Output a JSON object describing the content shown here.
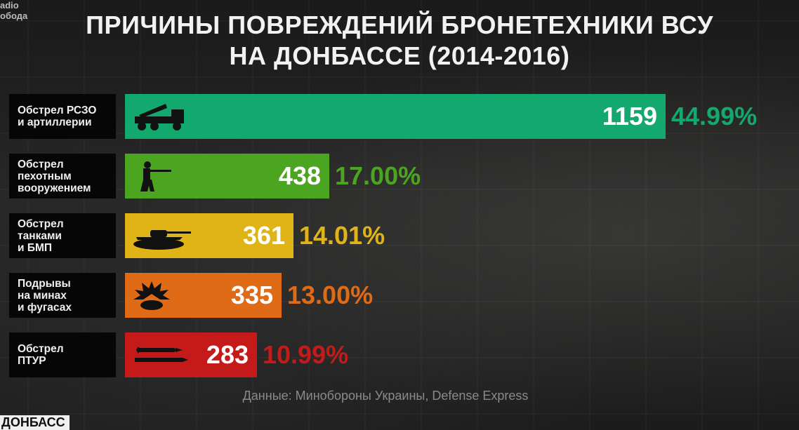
{
  "header": {
    "logo_line1": "adio",
    "logo_line2": "обода",
    "title_line1": "ПРИЧИНЫ ПОВРЕЖДЕНИЙ БРОНЕТЕХНИКИ ВСУ",
    "title_line2": "НА ДОНБАССЕ (2014-2016)"
  },
  "chart_data": {
    "type": "bar",
    "orientation": "horizontal",
    "title": "ПРИЧИНЫ ПОВРЕЖДЕНИЙ БРОНЕТЕХНИКИ ВСУ НА ДОНБАССЕ (2014-2016)",
    "categories": [
      "Обстрел РСЗО\nи артиллерии",
      "Обстрел\nпехотным\nвооружением",
      "Обстрел\nтанками\nи БМП",
      "Подрывы\nна минах\nи фугасах",
      "Обстрел\nПТУР"
    ],
    "values": [
      1159,
      438,
      361,
      335,
      283
    ],
    "value_labels": [
      "1159",
      "438",
      "361",
      "335",
      "283"
    ],
    "percent_labels": [
      "44.99%",
      "17.00%",
      "14.01%",
      "13.00%",
      "10.99%"
    ],
    "colors": [
      "#13a86e",
      "#4ca520",
      "#e0b416",
      "#e06b16",
      "#c41a1a"
    ],
    "pct_colors": [
      "#13a86e",
      "#4ca520",
      "#e0b416",
      "#e06b16",
      "#c41a1a"
    ],
    "icons": [
      "mlrs-truck-icon",
      "soldier-rifle-icon",
      "tank-icon",
      "mine-explosion-icon",
      "atgm-missile-icon"
    ],
    "xlim": [
      0,
      1159
    ],
    "grid": false,
    "legend": "none"
  },
  "footer": {
    "source": "Данные: Минобороны Украины, Defense Express",
    "channel_logo": "ДОНБАСС"
  }
}
